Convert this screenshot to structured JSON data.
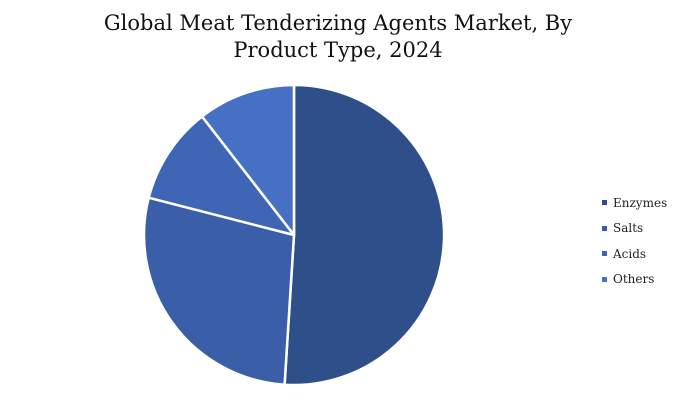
{
  "chart_data": {
    "type": "pie",
    "title_lines": [
      "Global Meat Tenderizing Agents Market, By",
      "Product Type, 2024"
    ],
    "categories": [
      "Enzymes",
      "Salts",
      "Acids",
      "Others"
    ],
    "values": [
      51,
      28,
      10.5,
      10.5
    ],
    "value_unit": "percent (estimated share)",
    "colors": [
      "#2E4F8A",
      "#3A5FA8",
      "#3F66B5",
      "#4570C4"
    ],
    "start_angle_deg": 0,
    "direction": "clockwise",
    "legend_position": "right"
  }
}
